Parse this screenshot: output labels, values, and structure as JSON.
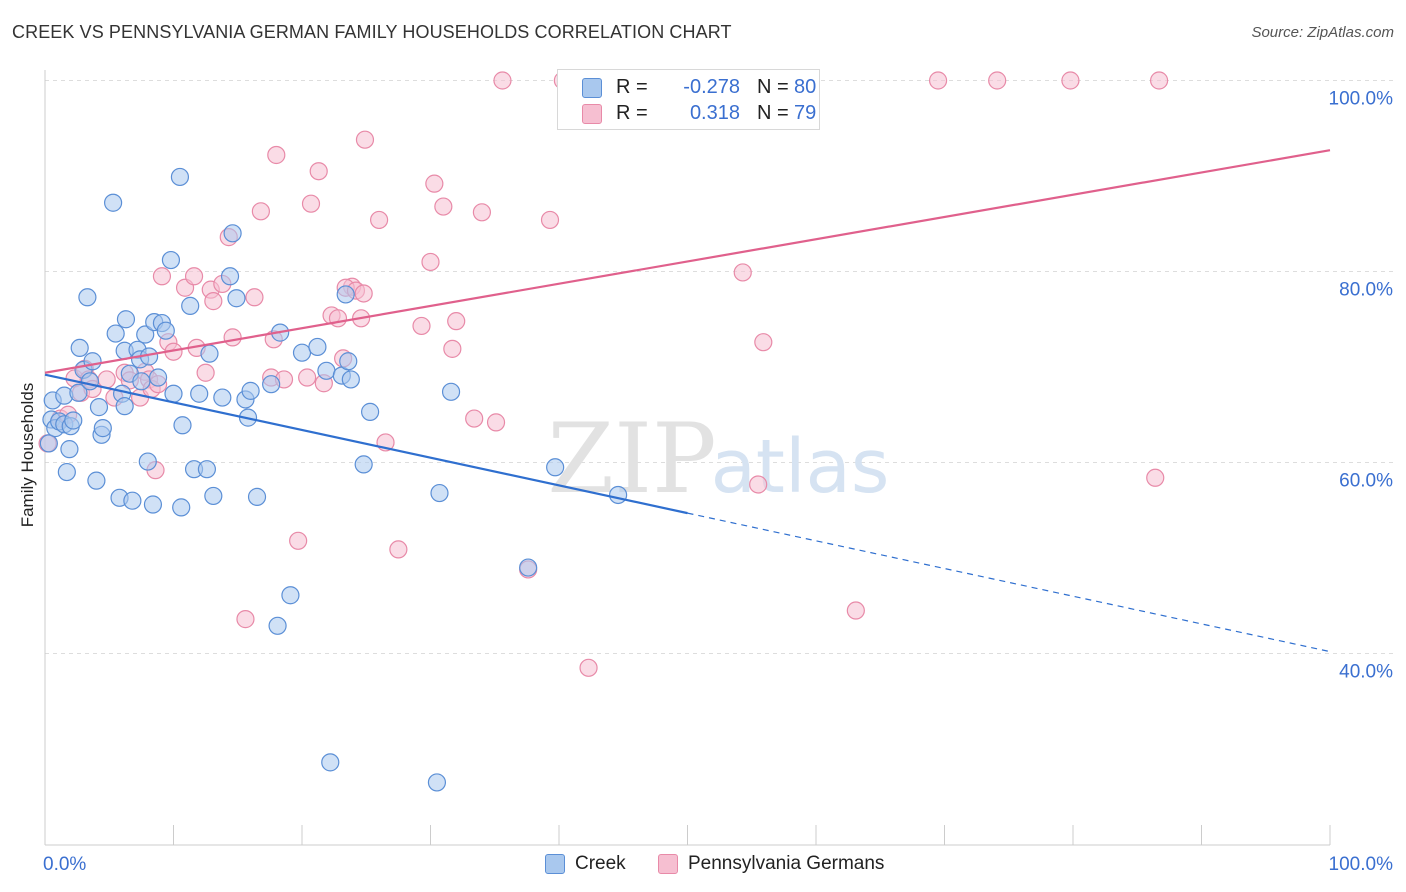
{
  "header": {
    "title": "CREEK VS PENNSYLVANIA GERMAN FAMILY HOUSEHOLDS CORRELATION CHART",
    "source": "Source: ZipAtlas.com"
  },
  "watermark": {
    "zip": "ZIP",
    "atlas": "atlas"
  },
  "stats": {
    "creek": {
      "r_label": "R =",
      "r_value": "-0.278",
      "n_label": "N =",
      "n_value": "80"
    },
    "pg": {
      "r_label": "R =",
      "r_value": "0.318",
      "n_label": "N =",
      "n_value": "79"
    }
  },
  "legend": {
    "creek": "Creek",
    "pg": "Pennsylvania Germans"
  },
  "colors": {
    "creek_fill": "#a9c8ee",
    "creek_stroke": "#5b8fd6",
    "creek_line": "#2f6fcf",
    "pg_fill": "#f6bfd1",
    "pg_stroke": "#e88aa8",
    "pg_line": "#e0608c",
    "tick_label": "#3a6fd0",
    "grid": "#dddddd"
  },
  "chart_data": {
    "type": "scatter",
    "title": "CREEK VS PENNSYLVANIA GERMAN FAMILY HOUSEHOLDS CORRELATION CHART",
    "xlabel": "",
    "ylabel": "Family Households",
    "xlim": [
      0,
      100
    ],
    "ylim": [
      20,
      102
    ],
    "x_tick_labels": [
      "0.0%",
      "100.0%"
    ],
    "y_ticks": [
      {
        "value": 40,
        "label": "40.0%"
      },
      {
        "value": 60,
        "label": "60.0%"
      },
      {
        "value": 80,
        "label": "80.0%"
      },
      {
        "value": 100,
        "label": "100.0%"
      }
    ],
    "grid": true,
    "legend_position": "bottom-center",
    "series": [
      {
        "name": "Creek",
        "r": -0.278,
        "n": 80,
        "trend": {
          "x_start": 0,
          "y_start": 69.2,
          "x_solid_end": 50,
          "y_solid_end": 54.7,
          "x_end": 100,
          "y_end": 40.2
        },
        "points": [
          [
            0.3,
            62
          ],
          [
            0.5,
            64.5
          ],
          [
            0.6,
            66.5
          ],
          [
            0.8,
            63.6
          ],
          [
            1.1,
            64.3
          ],
          [
            1.5,
            67
          ],
          [
            1.5,
            64
          ],
          [
            1.7,
            59
          ],
          [
            1.9,
            61.4
          ],
          [
            2.0,
            63.8
          ],
          [
            2.2,
            64.4
          ],
          [
            2.6,
            67.3
          ],
          [
            2.7,
            72
          ],
          [
            3.0,
            69.7
          ],
          [
            3.3,
            77.3
          ],
          [
            3.5,
            68.5
          ],
          [
            3.7,
            70.6
          ],
          [
            4.0,
            58.1
          ],
          [
            4.2,
            65.8
          ],
          [
            4.4,
            62.9
          ],
          [
            4.5,
            63.6
          ],
          [
            5.3,
            87.2
          ],
          [
            5.5,
            73.5
          ],
          [
            5.8,
            56.3
          ],
          [
            6.0,
            67.2
          ],
          [
            6.2,
            71.7
          ],
          [
            6.2,
            65.9
          ],
          [
            6.3,
            75
          ],
          [
            6.6,
            69.3
          ],
          [
            6.8,
            56
          ],
          [
            7.2,
            71.8
          ],
          [
            7.4,
            70.8
          ],
          [
            7.5,
            68.5
          ],
          [
            7.8,
            73.4
          ],
          [
            8.0,
            60.1
          ],
          [
            8.1,
            71.1
          ],
          [
            8.4,
            55.6
          ],
          [
            8.5,
            74.7
          ],
          [
            8.8,
            68.9
          ],
          [
            9.1,
            74.6
          ],
          [
            9.4,
            73.8
          ],
          [
            9.8,
            81.2
          ],
          [
            10.0,
            67.2
          ],
          [
            10.5,
            89.9
          ],
          [
            10.6,
            55.3
          ],
          [
            10.7,
            63.9
          ],
          [
            11.3,
            76.4
          ],
          [
            11.6,
            59.3
          ],
          [
            12.0,
            67.2
          ],
          [
            12.6,
            59.3
          ],
          [
            12.8,
            71.4
          ],
          [
            13.1,
            56.5
          ],
          [
            13.8,
            66.8
          ],
          [
            14.4,
            79.5
          ],
          [
            14.6,
            84
          ],
          [
            14.9,
            77.2
          ],
          [
            15.6,
            66.6
          ],
          [
            15.8,
            64.7
          ],
          [
            16.0,
            67.5
          ],
          [
            16.5,
            56.4
          ],
          [
            17.6,
            68.2
          ],
          [
            18.1,
            42.9
          ],
          [
            18.3,
            73.6
          ],
          [
            19.1,
            46.1
          ],
          [
            20.0,
            71.5
          ],
          [
            21.2,
            72.1
          ],
          [
            21.9,
            69.6
          ],
          [
            22.2,
            28.6
          ],
          [
            23.1,
            69.1
          ],
          [
            23.4,
            77.6
          ],
          [
            23.6,
            70.6
          ],
          [
            23.8,
            68.7
          ],
          [
            24.8,
            59.8
          ],
          [
            25.3,
            65.3
          ],
          [
            30.5,
            26.5
          ],
          [
            30.7,
            56.8
          ],
          [
            31.6,
            67.4
          ],
          [
            37.6,
            49
          ],
          [
            39.7,
            59.5
          ],
          [
            44.6,
            56.6
          ]
        ]
      },
      {
        "name": "Pennsylvania Germans",
        "r": 0.318,
        "n": 79,
        "trend": {
          "x_start": 0,
          "y_start": 69.4,
          "x_end": 100,
          "y_end": 92.7
        },
        "points": [
          [
            0.2,
            62
          ],
          [
            1.2,
            64.6
          ],
          [
            1.8,
            65
          ],
          [
            2.3,
            68.8
          ],
          [
            2.8,
            67.3
          ],
          [
            3.1,
            69.8
          ],
          [
            3.4,
            68.7
          ],
          [
            3.7,
            67.7
          ],
          [
            4.8,
            68.7
          ],
          [
            5.4,
            66.8
          ],
          [
            6.2,
            69.4
          ],
          [
            6.6,
            68.6
          ],
          [
            7.4,
            66.8
          ],
          [
            7.8,
            69.5
          ],
          [
            8.1,
            68.7
          ],
          [
            8.3,
            67.7
          ],
          [
            8.6,
            59.2
          ],
          [
            8.8,
            68.2
          ],
          [
            9.1,
            79.5
          ],
          [
            9.6,
            72.6
          ],
          [
            10.0,
            71.6
          ],
          [
            10.9,
            78.3
          ],
          [
            11.6,
            79.5
          ],
          [
            11.8,
            72
          ],
          [
            12.5,
            69.4
          ],
          [
            12.9,
            78.1
          ],
          [
            13.1,
            76.9
          ],
          [
            13.8,
            78.7
          ],
          [
            14.3,
            83.6
          ],
          [
            14.6,
            73.1
          ],
          [
            15.6,
            43.6
          ],
          [
            16.3,
            77.3
          ],
          [
            16.8,
            86.3
          ],
          [
            17.6,
            68.9
          ],
          [
            17.8,
            72.9
          ],
          [
            18.0,
            92.2
          ],
          [
            18.6,
            68.7
          ],
          [
            19.7,
            51.8
          ],
          [
            20.4,
            68.9
          ],
          [
            20.7,
            87.1
          ],
          [
            21.3,
            90.5
          ],
          [
            21.7,
            68.3
          ],
          [
            22.3,
            75.4
          ],
          [
            22.8,
            75.1
          ],
          [
            23.2,
            70.9
          ],
          [
            23.9,
            78.4
          ],
          [
            23.4,
            78.3
          ],
          [
            24.2,
            78
          ],
          [
            24.6,
            75.1
          ],
          [
            24.8,
            77.7
          ],
          [
            24.9,
            93.8
          ],
          [
            26.0,
            85.4
          ],
          [
            26.5,
            62.1
          ],
          [
            27.5,
            50.9
          ],
          [
            29.3,
            74.3
          ],
          [
            30.0,
            81
          ],
          [
            30.3,
            89.2
          ],
          [
            31.0,
            86.8
          ],
          [
            31.7,
            71.9
          ],
          [
            32.0,
            74.8
          ],
          [
            33.4,
            64.6
          ],
          [
            34.0,
            86.2
          ],
          [
            35.1,
            64.2
          ],
          [
            35.6,
            100
          ],
          [
            37.6,
            48.8
          ],
          [
            39.3,
            85.4
          ],
          [
            40.3,
            100
          ],
          [
            42.3,
            38.5
          ],
          [
            47.3,
            100
          ],
          [
            50.6,
            100
          ],
          [
            54.3,
            79.9
          ],
          [
            55.5,
            57.7
          ],
          [
            55.9,
            72.6
          ],
          [
            63.1,
            44.5
          ],
          [
            69.5,
            100
          ],
          [
            74.1,
            100
          ],
          [
            79.8,
            100
          ],
          [
            86.7,
            100
          ],
          [
            86.4,
            58.4
          ]
        ]
      }
    ]
  }
}
